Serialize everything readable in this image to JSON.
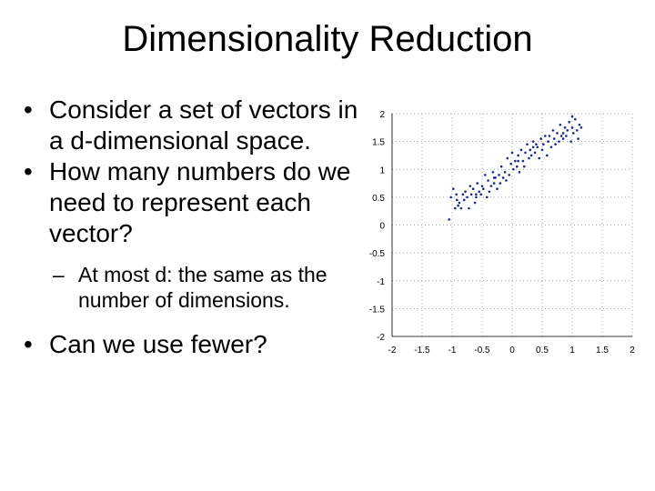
{
  "slide": {
    "title": "Dimensionality Reduction",
    "bullets": [
      "Consider a set of vectors in a d-dimensional space.",
      "How many numbers do we need to represent each vector?"
    ],
    "sub_bullet": "At most d: the same as the number of dimensions.",
    "last_bullet": "Can we use fewer?",
    "bullet_symbol": "•",
    "dash_symbol": "–"
  },
  "chart_data": {
    "type": "scatter",
    "title": "",
    "xlabel": "",
    "ylabel": "",
    "xlim": [
      -2,
      2
    ],
    "ylim": [
      -2,
      2
    ],
    "grid": true,
    "marker_color": "#1a2a8c",
    "xticks": [
      "-2",
      "-1.5",
      "-1",
      "-0.5",
      "0",
      "0.5",
      "1",
      "1.5",
      "2"
    ],
    "yticks": [
      "2",
      "1.5",
      "1",
      "0.5",
      "0",
      "-0.5",
      "-1",
      "-1.5",
      "-2"
    ],
    "x": [
      -1.05,
      -1.02,
      -0.98,
      -0.95,
      -0.93,
      -0.9,
      -0.88,
      -0.85,
      -0.82,
      -0.8,
      -0.78,
      -0.75,
      -0.72,
      -0.7,
      -0.68,
      -0.65,
      -0.62,
      -0.6,
      -0.58,
      -0.55,
      -0.52,
      -0.5,
      -0.48,
      -0.45,
      -0.42,
      -0.4,
      -0.38,
      -0.35,
      -0.32,
      -0.3,
      -0.28,
      -0.25,
      -0.22,
      -0.2,
      -0.18,
      -0.15,
      -0.12,
      -0.1,
      -0.08,
      -0.05,
      -0.02,
      0.0,
      0.02,
      0.05,
      0.08,
      0.1,
      0.12,
      0.15,
      0.18,
      0.2,
      0.22,
      0.25,
      0.28,
      0.3,
      0.32,
      0.35,
      0.38,
      0.4,
      0.42,
      0.45,
      0.48,
      0.5,
      0.52,
      0.55,
      0.58,
      0.6,
      0.62,
      0.65,
      0.68,
      0.7,
      0.72,
      0.75,
      0.78,
      0.8,
      0.82,
      0.85,
      0.88,
      0.9,
      0.92,
      0.95,
      0.98,
      1.0,
      1.02,
      1.05,
      1.08,
      1.1,
      1.12,
      1.15,
      -0.92,
      -0.6,
      -0.3,
      0.1,
      0.35,
      0.6,
      0.85,
      1.0
    ],
    "y": [
      0.1,
      0.5,
      0.65,
      0.3,
      0.55,
      0.35,
      0.4,
      0.3,
      0.55,
      0.45,
      0.6,
      0.5,
      0.3,
      0.7,
      0.55,
      0.65,
      0.4,
      0.5,
      0.75,
      0.6,
      0.55,
      0.7,
      0.65,
      0.9,
      0.5,
      0.8,
      0.6,
      0.7,
      0.95,
      0.75,
      0.85,
      0.65,
      0.9,
      0.75,
      1.05,
      0.85,
      0.95,
      0.8,
      1.2,
      0.9,
      1.1,
      1.3,
      1.0,
      1.15,
      1.05,
      1.25,
      0.95,
      1.35,
      1.15,
      1.05,
      1.3,
      1.45,
      1.2,
      1.35,
      1.25,
      1.5,
      1.3,
      1.45,
      1.4,
      1.2,
      1.55,
      1.35,
      1.45,
      1.6,
      1.25,
      1.5,
      1.6,
      1.4,
      1.7,
      1.55,
      1.45,
      1.65,
      1.5,
      1.8,
      1.6,
      1.55,
      1.75,
      1.6,
      1.7,
      1.85,
      1.5,
      1.75,
      1.65,
      1.9,
      1.7,
      1.55,
      1.8,
      1.75,
      0.45,
      0.55,
      0.85,
      1.15,
      1.4,
      1.5,
      1.65,
      1.95
    ]
  }
}
